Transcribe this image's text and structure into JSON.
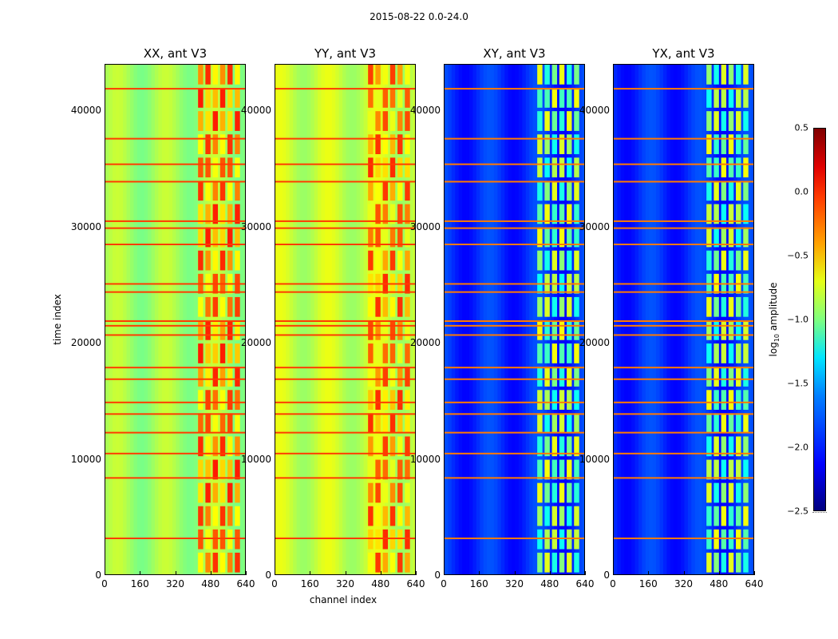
{
  "figure_title": "2015-08-22 0.0-24.0",
  "colorbar": {
    "label_main": "log",
    "label_sub": "10",
    "label_rest": " amplitude",
    "ticks": [
      "0.5",
      "0.0",
      "−0.5",
      "−1.0",
      "−1.5",
      "−2.0",
      "−2.5"
    ],
    "range": [
      -2.5,
      0.5
    ],
    "colormap": "jet"
  },
  "chart_data": {
    "type": "heatmap",
    "title": "2015-08-22 0.0-24.0",
    "xlabel": "channel index",
    "ylabel": "time index",
    "xlim": [
      0,
      640
    ],
    "ylim": [
      0,
      44000
    ],
    "x_ticks": [
      "0",
      "160",
      "320",
      "480",
      "640"
    ],
    "y_ticks": [
      "0",
      "10000",
      "20000",
      "30000",
      "40000"
    ],
    "panels": [
      {
        "title": "XX, ant V3",
        "base_level": -0.9,
        "band_level": -0.3
      },
      {
        "title": "YY, ant V3",
        "base_level": -0.8,
        "band_level": -0.35
      },
      {
        "title": "XY, ant V3",
        "base_level": -2.0,
        "band_level": -1.0
      },
      {
        "title": "YX, ant V3",
        "base_level": -2.0,
        "band_level": -1.0
      }
    ],
    "rfi_band_channels": [
      420,
      620
    ],
    "flagged_time_rows": [
      3300,
      8500,
      10600,
      12400,
      14000,
      15000,
      17000,
      18000,
      20800,
      21600,
      22000,
      24500,
      25200,
      28600,
      30000,
      30600,
      34000,
      35500,
      37700,
      42000
    ]
  }
}
